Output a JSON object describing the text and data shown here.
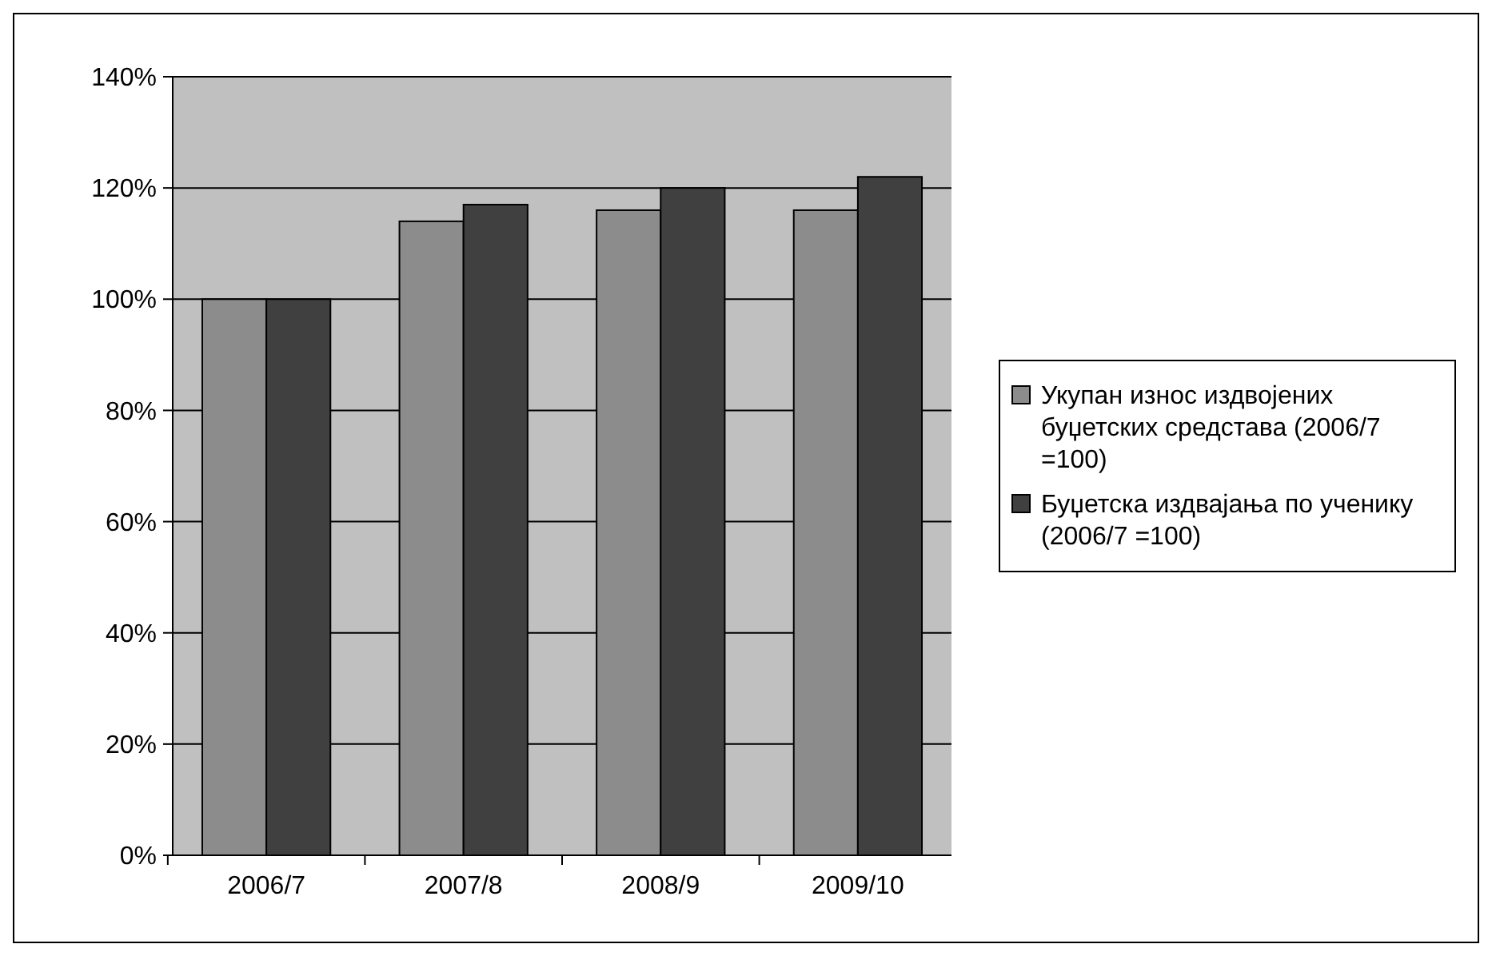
{
  "chart_data": {
    "type": "bar",
    "categories": [
      "2006/7",
      "2007/8",
      "2008/9",
      "2009/10"
    ],
    "series": [
      {
        "name": "Укупан износ издвојених буџетских средстава (2006/7 =100)",
        "color": "#8c8c8c",
        "values": [
          100,
          114,
          116,
          116
        ]
      },
      {
        "name": "Буџетска издвајања по ученику (2006/7 =100)",
        "color": "#404040",
        "values": [
          100,
          117,
          120,
          122
        ]
      }
    ],
    "ylim": [
      0,
      140
    ],
    "yticks": [
      {
        "value": 0,
        "label": "0%"
      },
      {
        "value": 20,
        "label": "20%"
      },
      {
        "value": 40,
        "label": "40%"
      },
      {
        "value": 60,
        "label": "60%"
      },
      {
        "value": 80,
        "label": "80%"
      },
      {
        "value": 100,
        "label": "100%"
      },
      {
        "value": 120,
        "label": "120%"
      },
      {
        "value": 140,
        "label": "140%"
      }
    ],
    "grid": "y",
    "legend": "right"
  }
}
